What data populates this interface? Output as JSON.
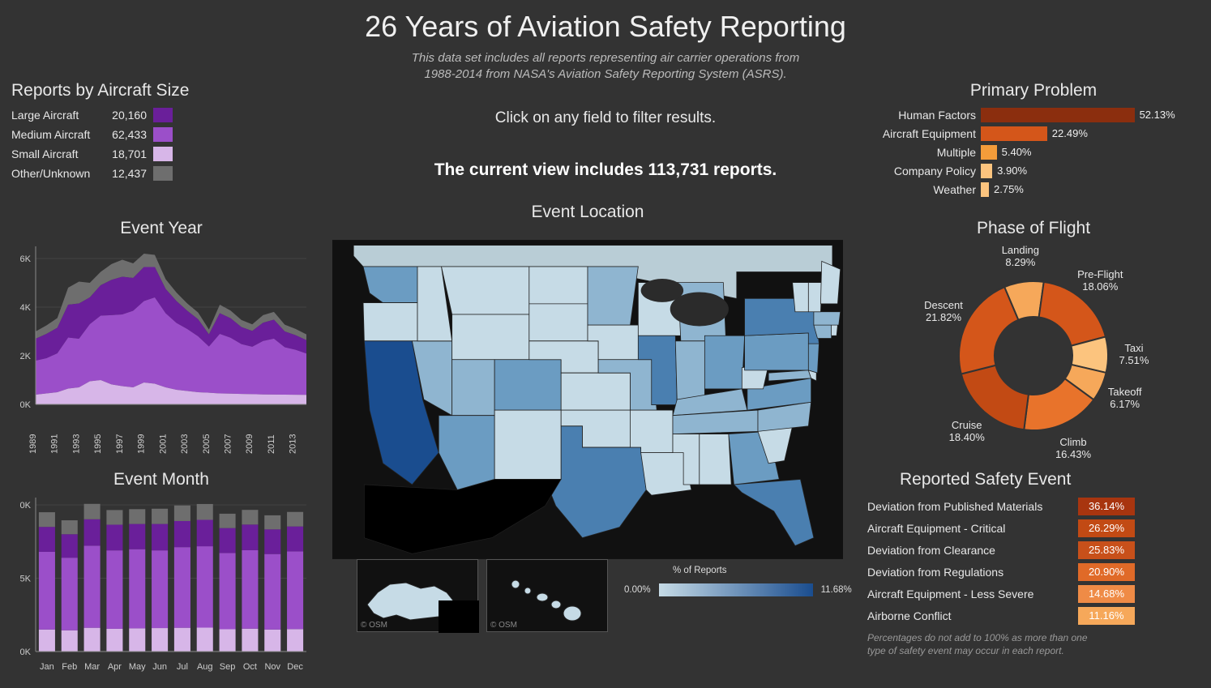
{
  "header": {
    "title": "26 Years of Aviation Safety Reporting",
    "subtitle_l1": "This data set includes all reports representing air carrier operations from",
    "subtitle_l2": "1988-2014 from NASA's Aviation Safety Reporting System (ASRS).",
    "instruction": "Click on any field to filter results.",
    "summary": "The current view includes 113,731 reports."
  },
  "colors": {
    "bg": "#333333",
    "text": "#e8e8e8",
    "purple_dark": "#6a1f9a",
    "purple_med": "#9b4fc9",
    "purple_light": "#d7b6e8",
    "grey_series": "#6e6e6e",
    "orange_dark": "#8b2e0e",
    "orange_mid": "#d4561a",
    "orange_light": "#f39c3a",
    "orange_pale": "#fcc47e",
    "map_low": "#c6dbe6",
    "map_high": "#1a4d8f"
  },
  "aircraft_size": {
    "title": "Reports by Aircraft Size",
    "rows": [
      {
        "label": "Large Aircraft",
        "value": "20,160",
        "color": "#6a1f9a"
      },
      {
        "label": "Medium Aircraft",
        "value": "62,433",
        "color": "#9b4fc9"
      },
      {
        "label": "Small Aircraft",
        "value": "18,701",
        "color": "#d7b6e8"
      },
      {
        "label": "Other/Unknown",
        "value": "12,437",
        "color": "#6e6e6e"
      }
    ]
  },
  "event_year": {
    "title": "Event Year",
    "type": "stacked-area",
    "ylim": [
      0,
      6500
    ],
    "yticks": [
      "0K",
      "2K",
      "4K",
      "6K"
    ],
    "years": [
      1989,
      1991,
      1993,
      1995,
      1997,
      1999,
      2001,
      2003,
      2005,
      2007,
      2009,
      2011,
      2013
    ],
    "series": [
      {
        "name": "Small",
        "color": "#d7b6e8",
        "values": [
          400,
          450,
          500,
          650,
          700,
          950,
          1000,
          820,
          750,
          700,
          900,
          850,
          700,
          600,
          550,
          500,
          480,
          450,
          440,
          430,
          420,
          410,
          405,
          400,
          395,
          390
        ]
      },
      {
        "name": "Medium",
        "color": "#9b4fc9",
        "values": [
          1400,
          1450,
          1600,
          2100,
          2000,
          2350,
          2650,
          2850,
          2950,
          3150,
          3350,
          3550,
          3050,
          2750,
          2550,
          2300,
          1900,
          2450,
          2300,
          2050,
          1950,
          2200,
          2300,
          1950,
          1850,
          1700
        ]
      },
      {
        "name": "Large",
        "color": "#6a1f9a",
        "values": [
          900,
          1000,
          1050,
          1350,
          1450,
          1100,
          1250,
          1450,
          1550,
          1350,
          1400,
          1250,
          1000,
          900,
          750,
          700,
          500,
          850,
          800,
          700,
          650,
          750,
          780,
          650,
          600,
          550
        ]
      },
      {
        "name": "Other",
        "color": "#6e6e6e",
        "values": [
          300,
          350,
          400,
          700,
          900,
          600,
          550,
          650,
          700,
          600,
          550,
          500,
          400,
          350,
          300,
          280,
          200,
          350,
          320,
          290,
          270,
          310,
          320,
          280,
          260,
          240
        ]
      }
    ]
  },
  "event_month": {
    "title": "Event Month",
    "type": "stacked-bar",
    "ylim": [
      0,
      10500
    ],
    "yticks": [
      "0K",
      "5K",
      "0K"
    ],
    "months": [
      "Jan",
      "Feb",
      "Mar",
      "Apr",
      "May",
      "Jun",
      "Jul",
      "Aug",
      "Sep",
      "Oct",
      "Nov",
      "Dec"
    ],
    "series_order": [
      "Small",
      "Medium",
      "Large",
      "Other"
    ],
    "colors": {
      "Small": "#d7b6e8",
      "Medium": "#9b4fc9",
      "Large": "#6a1f9a",
      "Other": "#6e6e6e"
    },
    "rows": [
      [
        1500,
        5300,
        1700,
        1000
      ],
      [
        1450,
        4950,
        1600,
        950
      ],
      [
        1620,
        5600,
        1800,
        1050
      ],
      [
        1550,
        5350,
        1750,
        1000
      ],
      [
        1580,
        5400,
        1720,
        1010
      ],
      [
        1600,
        5300,
        1800,
        1040
      ],
      [
        1620,
        5500,
        1780,
        1060
      ],
      [
        1630,
        5550,
        1800,
        1080
      ],
      [
        1520,
        5200,
        1700,
        980
      ],
      [
        1560,
        5350,
        1750,
        1000
      ],
      [
        1500,
        5150,
        1680,
        960
      ],
      [
        1530,
        5300,
        1700,
        990
      ]
    ]
  },
  "map": {
    "title": "Event Location",
    "legend_label": "% of Reports",
    "legend_min": "0.00%",
    "legend_max": "11.68%",
    "gradient_from": "#c6dbe6",
    "gradient_to": "#1a4d8f",
    "inset_label": "© OSM",
    "high_states": [
      "CA",
      "TX",
      "FL",
      "IL",
      "NY",
      "GA",
      "CO",
      "PA",
      "VA",
      "AZ",
      "WA",
      "MI",
      "OH",
      "NJ"
    ]
  },
  "primary_problem": {
    "title": "Primary Problem",
    "max_pct": 55,
    "rows": [
      {
        "label": "Human Factors",
        "pct": "52.13%",
        "v": 52.13,
        "color": "#8b2e0e"
      },
      {
        "label": "Aircraft Equipment",
        "pct": "22.49%",
        "v": 22.49,
        "color": "#d4561a"
      },
      {
        "label": "Multiple",
        "pct": "5.40%",
        "v": 5.4,
        "color": "#f39c3a"
      },
      {
        "label": "Company Policy",
        "pct": "3.90%",
        "v": 3.9,
        "color": "#fcc47e"
      },
      {
        "label": "Weather",
        "pct": "2.75%",
        "v": 2.75,
        "color": "#fcc47e"
      }
    ]
  },
  "phase_of_flight": {
    "title": "Phase of Flight",
    "type": "donut",
    "slices": [
      {
        "label": "Pre-Flight",
        "pct": "18.06%",
        "v": 18.06,
        "color": "#d4561a"
      },
      {
        "label": "Taxi",
        "pct": "7.51%",
        "v": 7.51,
        "color": "#fcc47e"
      },
      {
        "label": "Takeoff",
        "pct": "6.17%",
        "v": 6.17,
        "color": "#f6a85a"
      },
      {
        "label": "Climb",
        "pct": "16.43%",
        "v": 16.43,
        "color": "#e8732b"
      },
      {
        "label": "Cruise",
        "pct": "18.40%",
        "v": 18.4,
        "color": "#c24a14"
      },
      {
        "label": "Descent",
        "pct": "21.82%",
        "v": 21.82,
        "color": "#d4561a"
      },
      {
        "label": "Landing",
        "pct": "8.29%",
        "v": 8.29,
        "color": "#f6a85a"
      }
    ]
  },
  "safety_event": {
    "title": "Reported Safety Event",
    "rows": [
      {
        "label": "Deviation from Published Materials",
        "pct": "36.14%",
        "color": "#a8350f"
      },
      {
        "label": "Aircraft Equipment - Critical",
        "pct": "26.29%",
        "color": "#c24a14"
      },
      {
        "label": "Deviation from Clearance",
        "pct": "25.83%",
        "color": "#c8501a"
      },
      {
        "label": "Deviation from Regulations",
        "pct": "20.90%",
        "color": "#e06a28"
      },
      {
        "label": "Aircraft Equipment - Less Severe",
        "pct": "14.68%",
        "color": "#ef8b46"
      },
      {
        "label": "Airborne Conflict",
        "pct": "11.16%",
        "color": "#f6a85a"
      }
    ],
    "footnote_l1": "Percentages do not add to 100% as more than one",
    "footnote_l2": "type of safety event may occur in each report."
  }
}
